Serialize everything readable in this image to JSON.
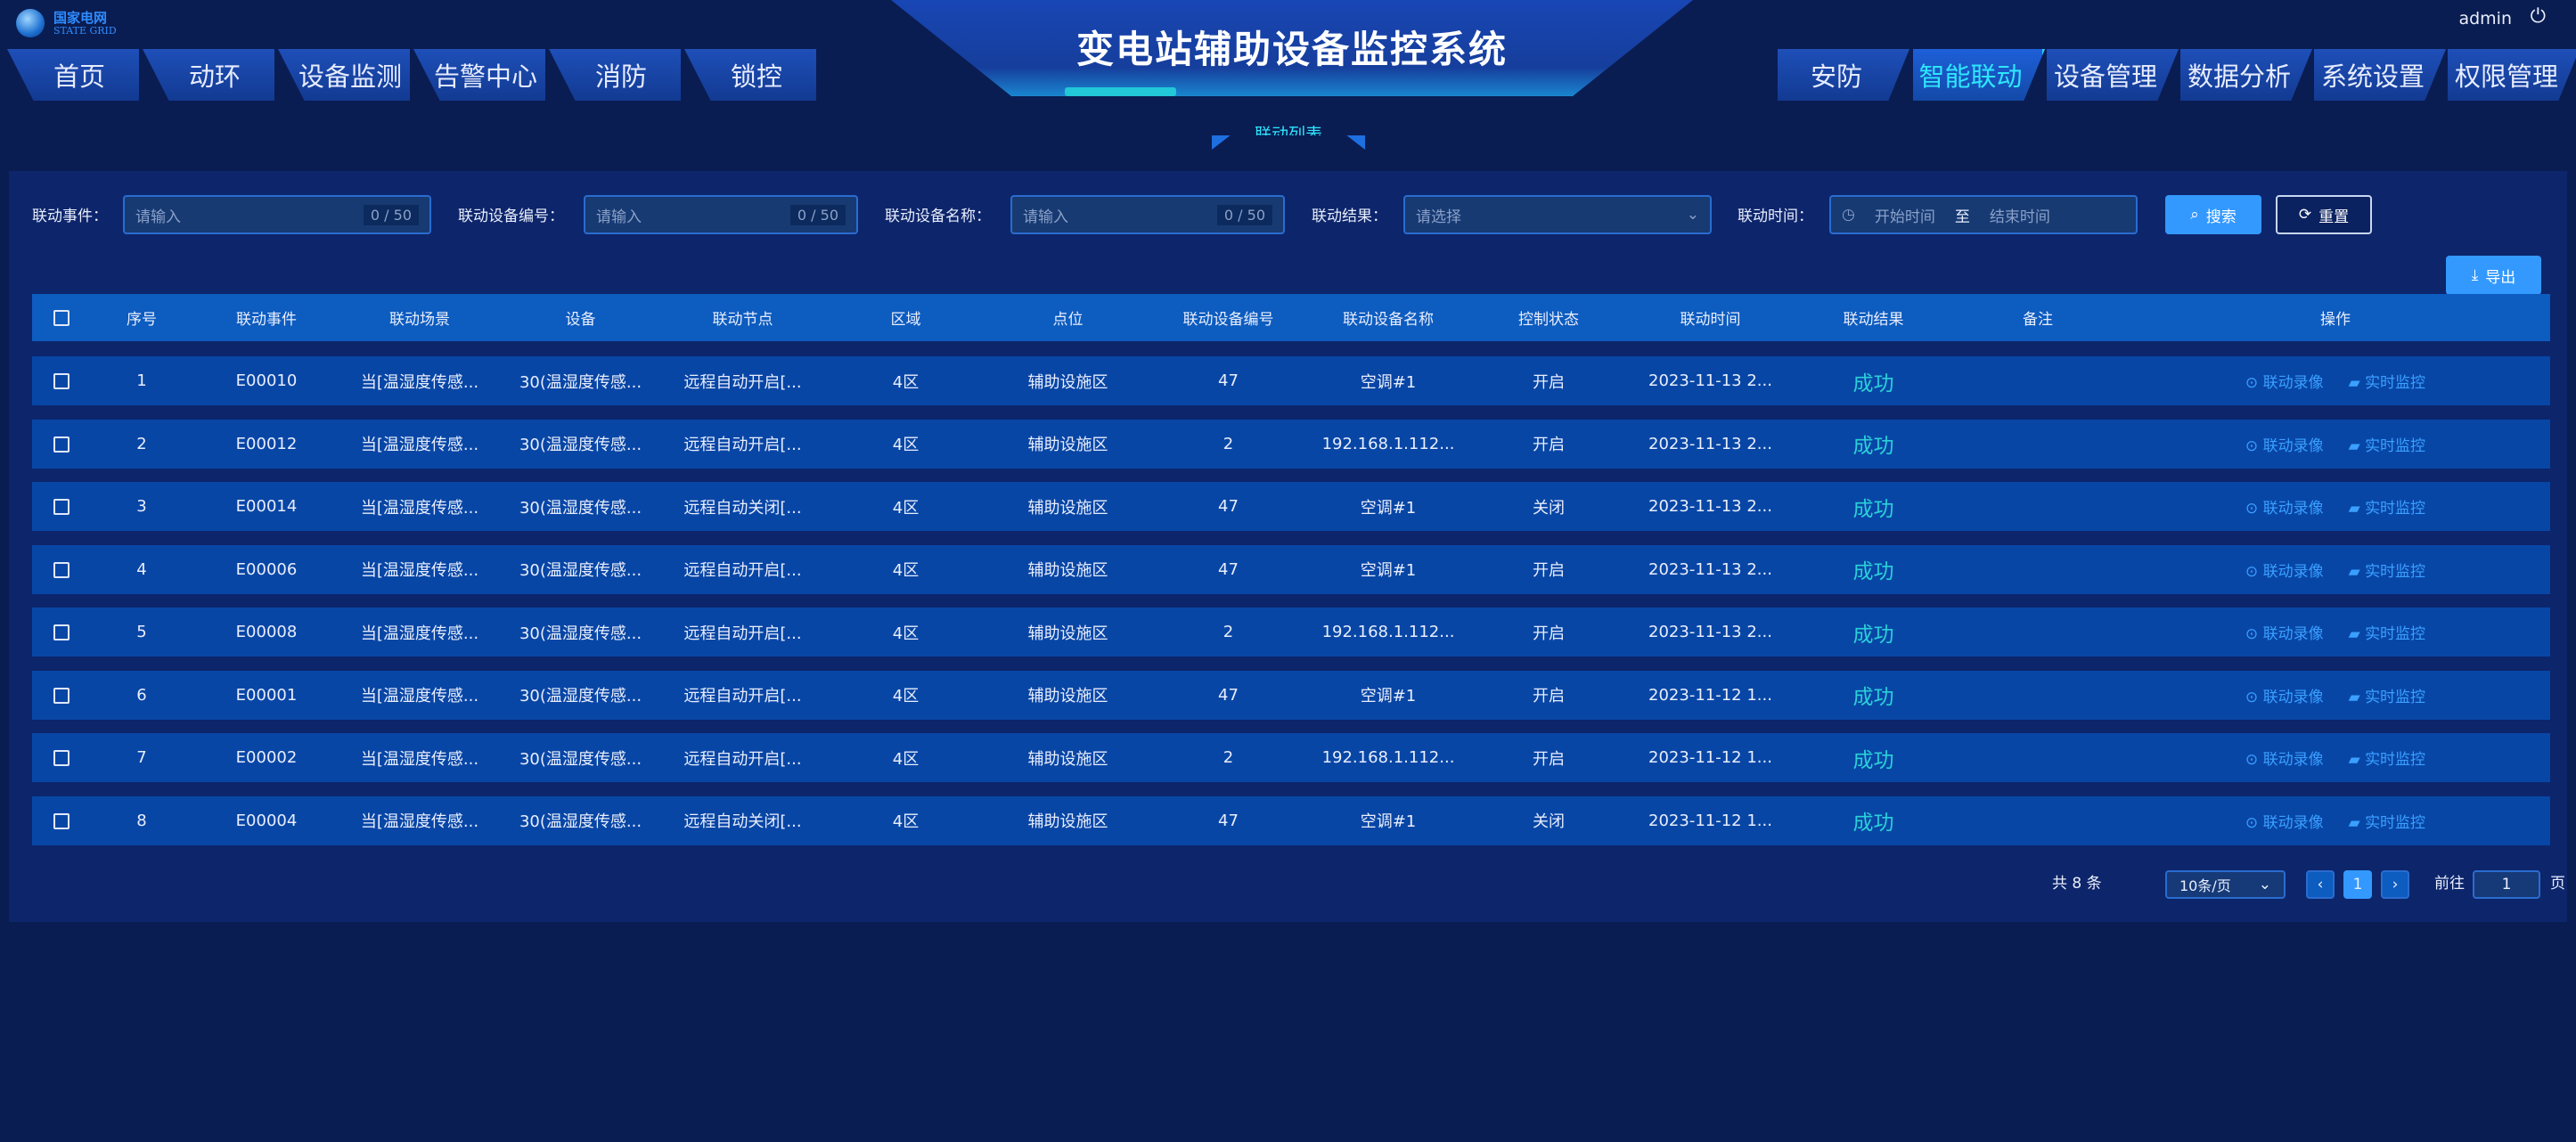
{
  "brand": {
    "name": "国家电网",
    "sub": "STATE GRID"
  },
  "title": "变电站辅助设备监控系统",
  "user": {
    "name": "admin",
    "logout_icon": "power-icon"
  },
  "nav_left": [
    "首页",
    "动环",
    "设备监测",
    "告警中心",
    "消防",
    "锁控"
  ],
  "nav_right": [
    "安防",
    "智能联动",
    "设备管理",
    "数据分析",
    "系统设置",
    "权限管理"
  ],
  "active_nav": "智能联动",
  "subtab": "联动列表",
  "filters": {
    "event": {
      "label": "联动事件：",
      "placeholder": "请输入",
      "count": "0 / 50"
    },
    "device_no": {
      "label": "联动设备编号：",
      "placeholder": "请输入",
      "count": "0 / 50"
    },
    "device_name": {
      "label": "联动设备名称：",
      "placeholder": "请输入",
      "count": "0 / 50"
    },
    "result": {
      "label": "联动结果：",
      "placeholder": "请选择"
    },
    "time": {
      "label": "联动时间：",
      "start": "开始时间",
      "sep": "至",
      "end": "结束时间"
    },
    "search": "搜索",
    "reset": "重置"
  },
  "export": "导出",
  "colors": {
    "accent": "#3399ff",
    "success": "#2ad0d8",
    "active_nav": "#2ee6ff",
    "header_row": "#0d5cc0",
    "row": "#0846a6"
  },
  "columns": [
    "序号",
    "联动事件",
    "联动场景",
    "设备",
    "联动节点",
    "区域",
    "点位",
    "联动设备编号",
    "联动设备名称",
    "控制状态",
    "联动时间",
    "联动结果",
    "备注",
    "操作"
  ],
  "rows": [
    [
      "1",
      "E00010",
      "当[温湿度传感...",
      "30(温湿度传感...",
      "远程自动开启[...",
      "4区",
      "辅助设施区",
      "47",
      "空调#1",
      "开启",
      "2023-11-13 2...",
      "成功",
      ""
    ],
    [
      "2",
      "E00012",
      "当[温湿度传感...",
      "30(温湿度传感...",
      "远程自动开启[...",
      "4区",
      "辅助设施区",
      "2",
      "192.168.1.112...",
      "开启",
      "2023-11-13 2...",
      "成功",
      ""
    ],
    [
      "3",
      "E00014",
      "当[温湿度传感...",
      "30(温湿度传感...",
      "远程自动关闭[...",
      "4区",
      "辅助设施区",
      "47",
      "空调#1",
      "关闭",
      "2023-11-13 2...",
      "成功",
      ""
    ],
    [
      "4",
      "E00006",
      "当[温湿度传感...",
      "30(温湿度传感...",
      "远程自动开启[...",
      "4区",
      "辅助设施区",
      "47",
      "空调#1",
      "开启",
      "2023-11-13 2...",
      "成功",
      ""
    ],
    [
      "5",
      "E00008",
      "当[温湿度传感...",
      "30(温湿度传感...",
      "远程自动开启[...",
      "4区",
      "辅助设施区",
      "2",
      "192.168.1.112...",
      "开启",
      "2023-11-13 2...",
      "成功",
      ""
    ],
    [
      "6",
      "E00001",
      "当[温湿度传感...",
      "30(温湿度传感...",
      "远程自动开启[...",
      "4区",
      "辅助设施区",
      "47",
      "空调#1",
      "开启",
      "2023-11-12 1...",
      "成功",
      ""
    ],
    [
      "7",
      "E00002",
      "当[温湿度传感...",
      "30(温湿度传感...",
      "远程自动开启[...",
      "4区",
      "辅助设施区",
      "2",
      "192.168.1.112...",
      "开启",
      "2023-11-12 1...",
      "成功",
      ""
    ],
    [
      "8",
      "E00004",
      "当[温湿度传感...",
      "30(温湿度传感...",
      "远程自动关闭[...",
      "4区",
      "辅助设施区",
      "47",
      "空调#1",
      "关闭",
      "2023-11-12 1...",
      "成功",
      ""
    ]
  ],
  "row_actions": [
    "联动录像",
    "实时监控"
  ],
  "pagination": {
    "total": "共 8 条",
    "page_size": "10条/页",
    "current": "1",
    "goto_label": "前往",
    "goto_value": "1",
    "page_unit": "页"
  }
}
